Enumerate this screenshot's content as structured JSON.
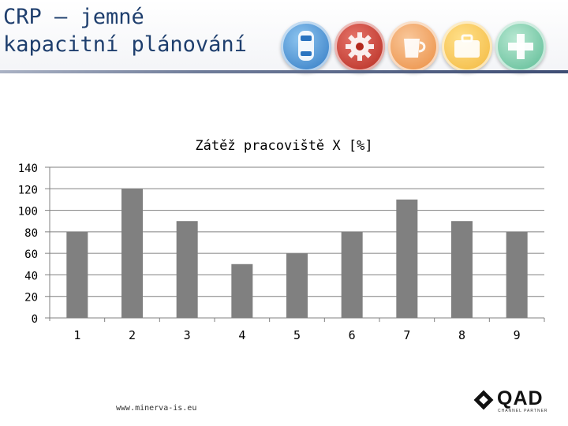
{
  "slide": {
    "title": "CRP – jemné\nkapacitní plánování",
    "footer_url": "www.minerva-is.eu"
  },
  "logo": {
    "text": "QAD",
    "subtitle": "CHANNEL PARTNER"
  },
  "icons": [
    "car-icon",
    "gear-icon",
    "cup-icon",
    "briefcase-icon",
    "cross-icon"
  ],
  "colors": {
    "bar": "#808080",
    "grid": "#808080",
    "title": "#1f3f6e"
  },
  "chart_data": {
    "type": "bar",
    "title": "Zátěž pracoviště X [%]",
    "categories": [
      "1",
      "2",
      "3",
      "4",
      "5",
      "6",
      "7",
      "8",
      "9"
    ],
    "values": [
      80,
      120,
      90,
      50,
      60,
      80,
      110,
      90,
      80
    ],
    "ylim": [
      0,
      140
    ],
    "yticks": [
      0,
      20,
      40,
      60,
      80,
      100,
      120,
      140
    ],
    "grid": true,
    "legend": "none"
  }
}
